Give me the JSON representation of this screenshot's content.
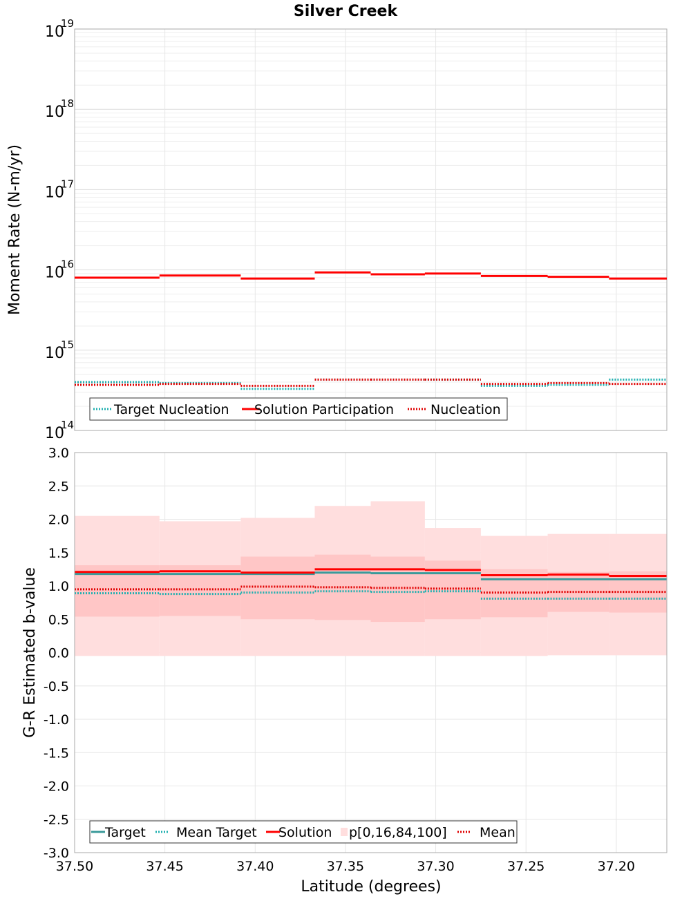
{
  "title": "Silver Creek",
  "xlabel": "Latitude (degrees)",
  "x_ticks": [
    "37.50",
    "37.45",
    "37.40",
    "37.35",
    "37.30",
    "37.25",
    "37.20"
  ],
  "colors": {
    "target": "#20b0b0",
    "solution": "#ff0000",
    "mean": "#e00000",
    "band_outer": "#ffdede",
    "band_inner": "#ffc6c6",
    "target_solid": "#3a9a9a"
  },
  "chart_data": [
    {
      "type": "line",
      "scale": "log",
      "ylabel": "Moment Rate (N-m/yr)",
      "ylim": [
        100000000000000.0,
        1e+19
      ],
      "xlim": [
        37.5,
        37.172
      ],
      "y_tick_bases": [
        "10",
        "10",
        "10",
        "10",
        "10",
        "10"
      ],
      "y_tick_exps": [
        "14",
        "15",
        "16",
        "17",
        "18",
        "19"
      ],
      "bin_edges": [
        37.5,
        37.453,
        37.408,
        37.367,
        37.336,
        37.306,
        37.275,
        37.238,
        37.204,
        37.172
      ],
      "legend": [
        "Target Nucleation",
        "Solution Participation",
        "Nucleation"
      ],
      "series": [
        {
          "name": "Target Nucleation",
          "values": [
            400000000000000.0,
            390000000000000.0,
            330000000000000.0,
            430000000000000.0,
            430000000000000.0,
            430000000000000.0,
            360000000000000.0,
            370000000000000.0,
            430000000000000.0
          ]
        },
        {
          "name": "Solution Participation",
          "values": [
            8000000000000000.0,
            8500000000000000.0,
            7800000000000000.0,
            9300000000000000.0,
            8800000000000000.0,
            9000000000000000.0,
            8400000000000000.0,
            8200000000000000.0,
            7800000000000000.0
          ]
        },
        {
          "name": "Nucleation",
          "values": [
            370000000000000.0,
            380000000000000.0,
            360000000000000.0,
            430000000000000.0,
            430000000000000.0,
            430000000000000.0,
            380000000000000.0,
            390000000000000.0,
            380000000000000.0
          ]
        }
      ]
    },
    {
      "type": "line",
      "scale": "linear",
      "ylabel": "G-R Estimated b-value",
      "ylim": [
        -3.0,
        3.0
      ],
      "xlim": [
        37.5,
        37.172
      ],
      "y_ticks": [
        "-3.0",
        "-2.5",
        "-2.0",
        "-1.5",
        "-1.0",
        "-0.5",
        "0.0",
        "0.5",
        "1.0",
        "1.5",
        "2.0",
        "2.5",
        "3.0"
      ],
      "bin_edges": [
        37.5,
        37.453,
        37.408,
        37.367,
        37.336,
        37.306,
        37.275,
        37.238,
        37.204,
        37.172
      ],
      "legend": [
        "Target",
        "Mean Target",
        "Solution",
        "p[0,16,84,100]",
        "Mean"
      ],
      "series": [
        {
          "name": "Target",
          "values": [
            1.18,
            1.18,
            1.18,
            1.2,
            1.19,
            1.19,
            1.1,
            1.1,
            1.1
          ]
        },
        {
          "name": "Mean Target",
          "values": [
            0.89,
            0.88,
            0.9,
            0.92,
            0.91,
            0.92,
            0.81,
            0.81,
            0.81
          ]
        },
        {
          "name": "Solution",
          "values": [
            1.21,
            1.22,
            1.2,
            1.25,
            1.25,
            1.24,
            1.16,
            1.17,
            1.15
          ]
        },
        {
          "name": "Mean",
          "values": [
            0.95,
            0.95,
            0.99,
            0.98,
            0.97,
            0.96,
            0.9,
            0.91,
            0.91
          ]
        }
      ],
      "band": {
        "p0": [
          -0.05,
          -0.05,
          -0.05,
          -0.05,
          -0.05,
          -0.05,
          -0.05,
          -0.04,
          -0.04
        ],
        "p16": [
          0.54,
          0.55,
          0.5,
          0.49,
          0.46,
          0.5,
          0.53,
          0.61,
          0.6
        ],
        "p84": [
          1.31,
          1.31,
          1.44,
          1.47,
          1.44,
          1.38,
          1.25,
          1.21,
          1.22
        ],
        "p100": [
          2.05,
          1.97,
          2.02,
          2.2,
          2.27,
          1.87,
          1.75,
          1.78,
          1.78
        ]
      }
    }
  ]
}
